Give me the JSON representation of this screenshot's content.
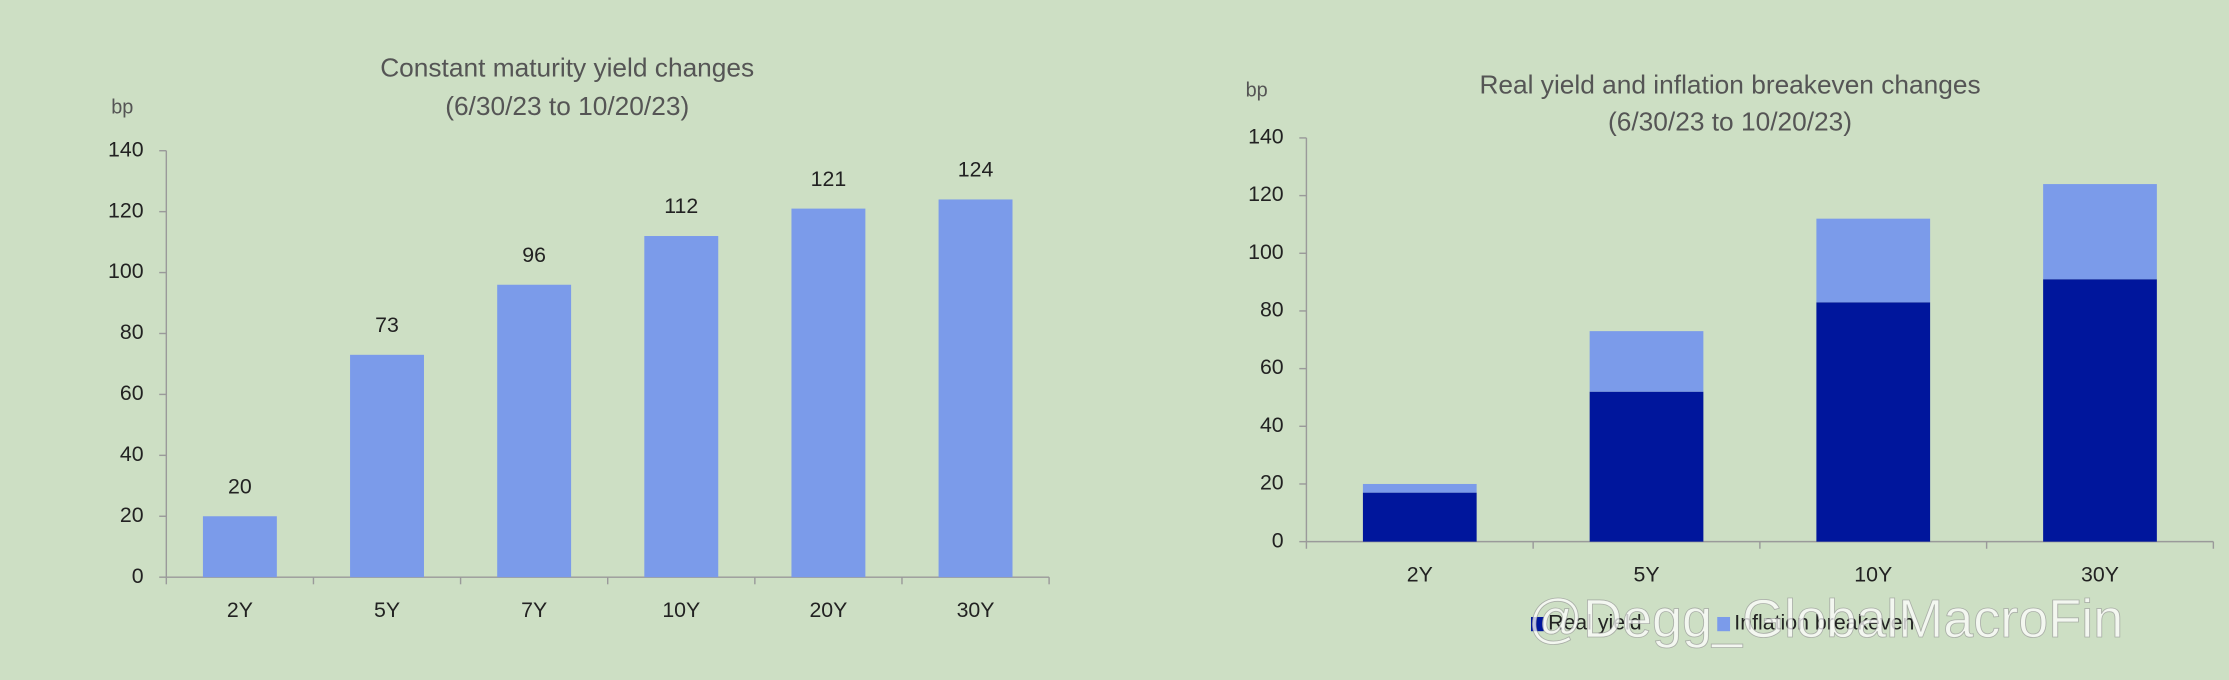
{
  "chart_data": [
    {
      "type": "bar",
      "title": "Constant maturity yield changes",
      "subtitle": "(6/30/23 to 10/20/23)",
      "y_label": "bp",
      "categories": [
        "2Y",
        "5Y",
        "7Y",
        "10Y",
        "20Y",
        "30Y"
      ],
      "values": [
        20,
        73,
        96,
        112,
        121,
        124
      ],
      "color": "#7b9bea",
      "ylim": [
        0,
        140
      ],
      "yticks": [
        0,
        20,
        40,
        60,
        80,
        100,
        120,
        140
      ],
      "data_labels": true
    },
    {
      "type": "stacked_bar",
      "title": "Real yield and inflation breakeven changes",
      "subtitle": "(6/30/23 to 10/20/23)",
      "y_label": "bp",
      "categories": [
        "2Y",
        "5Y",
        "10Y",
        "30Y"
      ],
      "series": [
        {
          "name": "Real yield",
          "color": "#00169c",
          "values": [
            17,
            52,
            83,
            91
          ]
        },
        {
          "name": "Inflation breakeven",
          "color": "#7b9bea",
          "values": [
            3,
            21,
            29,
            33
          ]
        }
      ],
      "ylim": [
        0,
        140
      ],
      "yticks": [
        0,
        20,
        40,
        60,
        80,
        100,
        120,
        140
      ],
      "legend": "bottom"
    }
  ],
  "watermark": "@Degg_GlobalMacroFin"
}
